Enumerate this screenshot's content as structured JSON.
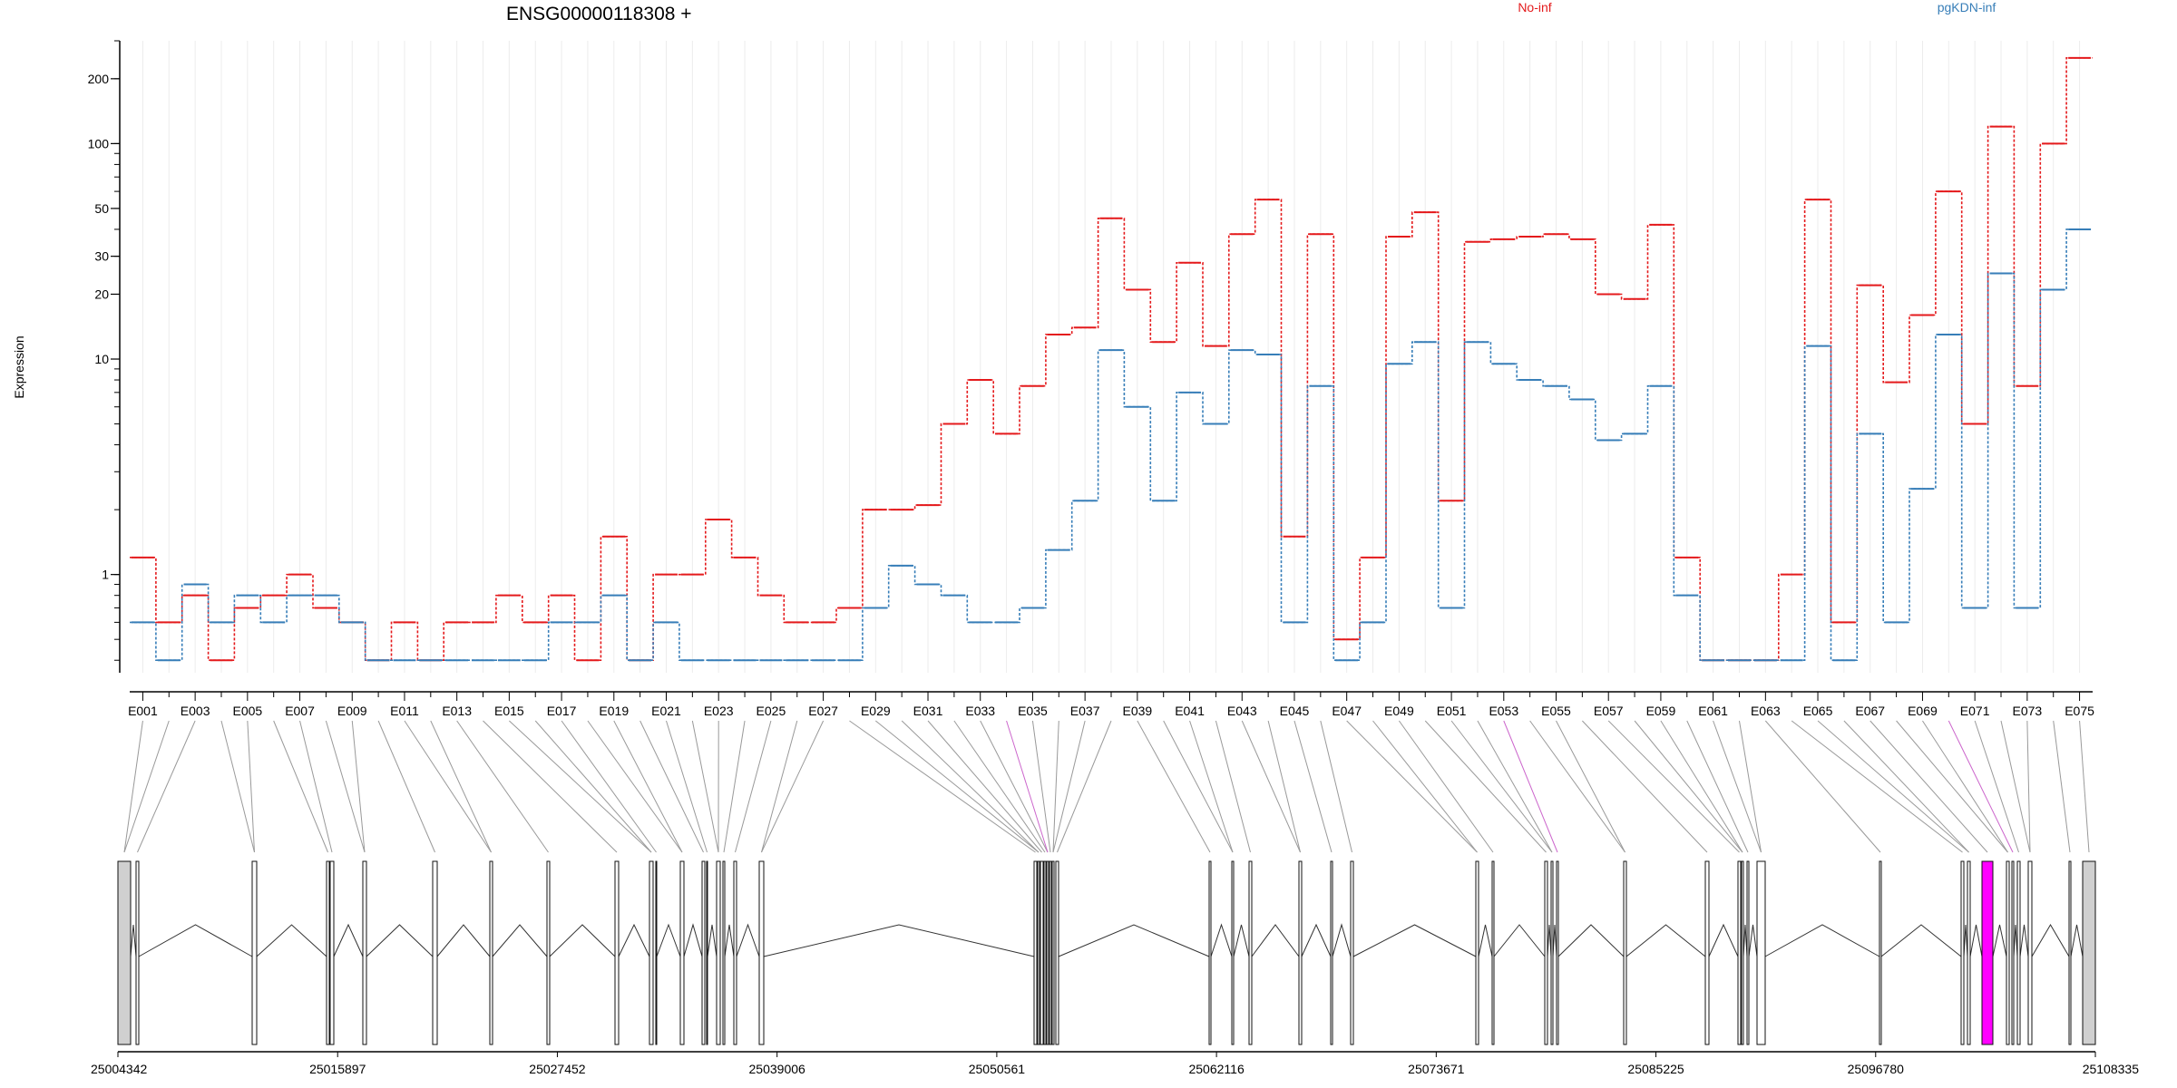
{
  "chart_data": {
    "type": "line",
    "title": "ENSG00000118308 +",
    "ylabel": "Expression",
    "xlabel": "",
    "y_scale": "log",
    "ylim": [
      0.35,
      300
    ],
    "y_ticks": [
      1,
      10,
      20,
      30,
      50,
      100,
      200
    ],
    "grid": "vertical",
    "legend_placement": "top",
    "categories": [
      "E001",
      "E002",
      "E003",
      "E004",
      "E005",
      "E006",
      "E007",
      "E008",
      "E009",
      "E010",
      "E011",
      "E012",
      "E013",
      "E014",
      "E015",
      "E016",
      "E017",
      "E018",
      "E019",
      "E020",
      "E021",
      "E022",
      "E023",
      "E024",
      "E025",
      "E026",
      "E027",
      "E028",
      "E029",
      "E030",
      "E031",
      "E032",
      "E033",
      "E034",
      "E035",
      "E036",
      "E037",
      "E038",
      "E039",
      "E040",
      "E041",
      "E042",
      "E043",
      "E044",
      "E045",
      "E046",
      "E047",
      "E048",
      "E049",
      "E050",
      "E051",
      "E052",
      "E053",
      "E054",
      "E055",
      "E056",
      "E057",
      "E058",
      "E059",
      "E060",
      "E061",
      "E062",
      "E063",
      "E064",
      "E065",
      "E066",
      "E067",
      "E068",
      "E069",
      "E070",
      "E071",
      "E072",
      "E073",
      "E074",
      "E075"
    ],
    "series": [
      {
        "name": "No-inf",
        "color": "#e41a1c",
        "values": [
          1.2,
          0.6,
          0.8,
          0.4,
          0.7,
          0.8,
          1,
          0.7,
          0.6,
          0.4,
          0.6,
          0.4,
          0.6,
          0.6,
          0.8,
          0.6,
          0.8,
          0.4,
          1.5,
          0.4,
          1,
          1,
          1.8,
          1.2,
          0.8,
          0.6,
          0.6,
          0.7,
          2,
          2,
          2.1,
          5,
          8,
          4.5,
          7.5,
          13,
          14,
          45,
          21,
          12,
          28,
          11.5,
          38,
          55,
          1.5,
          38,
          0.5,
          1.2,
          37,
          48,
          2.2,
          35,
          36,
          37,
          38,
          36,
          20,
          19,
          42,
          1.2,
          0.4,
          0.4,
          0.4,
          1,
          55,
          0.6,
          22,
          7.8,
          16,
          60,
          5,
          120,
          7.5,
          100,
          250
        ]
      },
      {
        "name": "pgKDN-inf",
        "color": "#377eb8",
        "values": [
          0.6,
          0.4,
          0.9,
          0.6,
          0.8,
          0.6,
          0.8,
          0.8,
          0.6,
          0.4,
          0.4,
          0.4,
          0.4,
          0.4,
          0.4,
          0.4,
          0.6,
          0.6,
          0.8,
          0.4,
          0.6,
          0.4,
          0.4,
          0.4,
          0.4,
          0.4,
          0.4,
          0.4,
          0.7,
          1.1,
          0.9,
          0.8,
          0.6,
          0.6,
          0.7,
          1.3,
          2.2,
          11,
          6,
          2.2,
          7,
          5,
          11,
          10.5,
          0.6,
          7.5,
          0.4,
          0.6,
          9.5,
          12,
          0.7,
          12,
          9.5,
          8,
          7.5,
          6.5,
          4.2,
          4.5,
          7.5,
          0.8,
          0.4,
          0.4,
          0.4,
          0.4,
          11.5,
          0.4,
          4.5,
          0.6,
          2.5,
          13,
          0.7,
          25,
          0.7,
          21,
          40
        ]
      }
    ],
    "genome_axis": {
      "ticks": [
        "25004342",
        "25015897",
        "25027452",
        "25039006",
        "25050561",
        "25062116",
        "25073671",
        "25085225",
        "25096780",
        "25108335"
      ],
      "range": [
        25004342,
        25108335
      ]
    },
    "highlight_color": "#ff00ff"
  }
}
